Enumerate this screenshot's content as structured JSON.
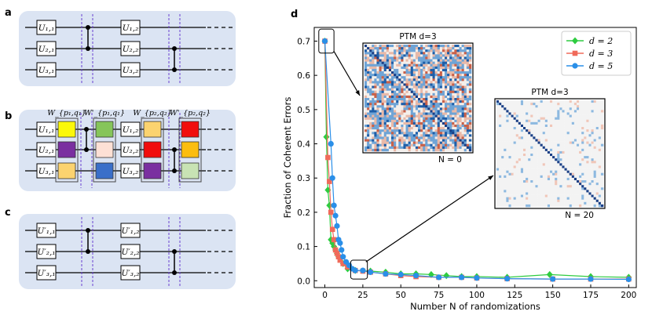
{
  "panels": {
    "a": {
      "label": "a",
      "gates": [
        "U₁,₁",
        "U₂,₁",
        "U₃,₁",
        "U₁,₂",
        "U₂,₂",
        "U₃,₂"
      ]
    },
    "b": {
      "label": "b",
      "gates": [
        "U₁,₁",
        "U₂,₁",
        "U₃,₁",
        "U₁,₂",
        "U₂,₂",
        "U₃,₂"
      ],
      "twirl_labels": [
        "W_{p₁,q₁}",
        "W'_{p₁,q₁}",
        "W_{p₂,q₂}",
        "W'_{p₂,q₂}"
      ],
      "colors": {
        "col1": [
          "#fbf80a",
          "#7a2fa0",
          "#fbd36f"
        ],
        "col2": [
          "#86c55a",
          "#fde0d5",
          "#3a6fc9"
        ],
        "col3": [
          "#fbd36f",
          "#f10d0d",
          "#7a2fa0"
        ],
        "col4": [
          "#f10d0d",
          "#fbbd10",
          "#c8e3b4"
        ]
      }
    },
    "c": {
      "label": "c",
      "gates": [
        "U′₁,₁",
        "U′₂,₁",
        "U′₃,₁",
        "U′₁,₂",
        "U′₂,₂",
        "U′₃,₂"
      ]
    },
    "d": {
      "label": "d"
    }
  },
  "chart_data": {
    "type": "line",
    "title": "",
    "xlabel": "Number N of randomizations",
    "ylabel": "Fraction of Coherent Errors",
    "xlim": [
      -7,
      205
    ],
    "ylim": [
      -0.02,
      0.74
    ],
    "xticks": [
      0,
      25,
      50,
      75,
      100,
      125,
      150,
      175,
      200
    ],
    "yticks": [
      0.0,
      0.1,
      0.2,
      0.3,
      0.4,
      0.5,
      0.6,
      0.7
    ],
    "legend_position": "top-right",
    "series": [
      {
        "name": "d = 2",
        "color": "#2ecc40",
        "marker": "diamond",
        "x": [
          0,
          1,
          2,
          3,
          4,
          5,
          6,
          7,
          8,
          9,
          10,
          12,
          15,
          20,
          30,
          40,
          50,
          60,
          70,
          80,
          90,
          100,
          120,
          148,
          175,
          200
        ],
        "y": [
          0.7,
          0.42,
          0.265,
          0.22,
          0.12,
          0.11,
          0.1,
          0.09,
          0.08,
          0.07,
          0.065,
          0.05,
          0.035,
          0.03,
          0.028,
          0.025,
          0.02,
          0.02,
          0.018,
          0.015,
          0.012,
          0.012,
          0.01,
          0.018,
          0.012,
          0.01
        ]
      },
      {
        "name": "d = 3",
        "color": "#f06a5a",
        "marker": "square",
        "x": [
          0,
          2,
          3,
          4,
          5,
          6,
          7,
          8,
          9,
          10,
          12,
          15,
          20,
          25,
          30,
          40,
          50,
          60,
          75,
          90,
          100,
          120,
          150,
          175,
          200
        ],
        "y": [
          0.7,
          0.36,
          0.29,
          0.2,
          0.15,
          0.12,
          0.09,
          0.08,
          0.07,
          0.06,
          0.05,
          0.04,
          0.03,
          0.028,
          0.025,
          0.02,
          0.015,
          0.012,
          0.01,
          0.01,
          0.008,
          0.006,
          0.005,
          0.005,
          0.005
        ]
      },
      {
        "name": "d = 5",
        "color": "#2a8fe8",
        "marker": "circle",
        "x": [
          0,
          4,
          5,
          6,
          7,
          8,
          9,
          10,
          11,
          12,
          14,
          16,
          18,
          20,
          25,
          30,
          40,
          50,
          60,
          75,
          90,
          100,
          120,
          150,
          175,
          200
        ],
        "y": [
          0.7,
          0.4,
          0.3,
          0.22,
          0.19,
          0.16,
          0.12,
          0.11,
          0.09,
          0.07,
          0.055,
          0.045,
          0.035,
          0.03,
          0.03,
          0.025,
          0.02,
          0.018,
          0.015,
          0.01,
          0.01,
          0.008,
          0.006,
          0.005,
          0.005,
          0.004
        ]
      }
    ],
    "insets": [
      {
        "title": "PTM d=3",
        "caption": "N = 0"
      },
      {
        "title": "PTM d=3",
        "caption": "N = 20"
      }
    ]
  }
}
